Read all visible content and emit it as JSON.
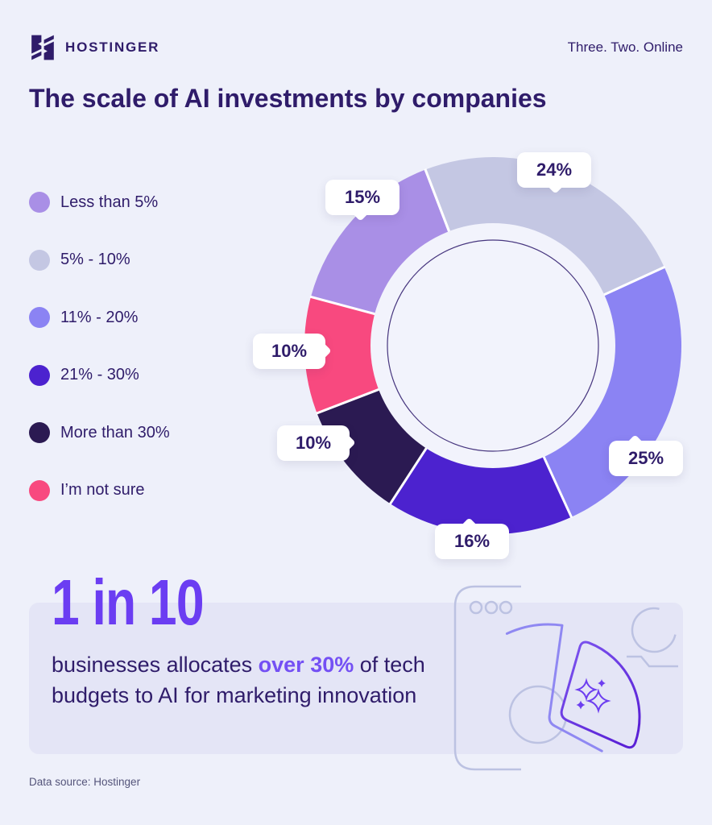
{
  "header": {
    "brand": "HOSTINGER",
    "tagline": "Three. Two. Online"
  },
  "title": "The scale of AI investments by companies",
  "chart_data": {
    "type": "pie",
    "donut": true,
    "title": "The scale of AI investments by companies",
    "unit": "%",
    "legend_position": "left",
    "start_angle_deg": -21,
    "segments": [
      {
        "label": "Less than 5%",
        "value": 15,
        "color": "#a98fe6"
      },
      {
        "label": "5% - 10%",
        "value": 24,
        "color": "#c4c7e3"
      },
      {
        "label": "11% - 20%",
        "value": 25,
        "color": "#8b83f3"
      },
      {
        "label": "21% - 30%",
        "value": 16,
        "color": "#4c22cf"
      },
      {
        "label": "More than 30%",
        "value": 10,
        "color": "#2b1a52"
      },
      {
        "label": "I’m not sure",
        "value": 10,
        "color": "#f8497f"
      }
    ],
    "donut_clockwise_from_top": [
      "5% - 10%",
      "11% - 20%",
      "21% - 30%",
      "More than 30%",
      "I’m not sure",
      "Less than 5%"
    ]
  },
  "highlight_stat": {
    "headline": "1 in 10",
    "text_before": "businesses allocates ",
    "text_highlight": "over 30%",
    "text_after": " of tech budgets to AI for marketing innovation"
  },
  "footer": {
    "source": "Data source: Hostinger"
  },
  "colors": {
    "background": "#eef0fa",
    "card": "#e4e5f6",
    "text": "#2f1c6a",
    "accent": "#6b3df2",
    "callout_bg": "#ffffff"
  }
}
